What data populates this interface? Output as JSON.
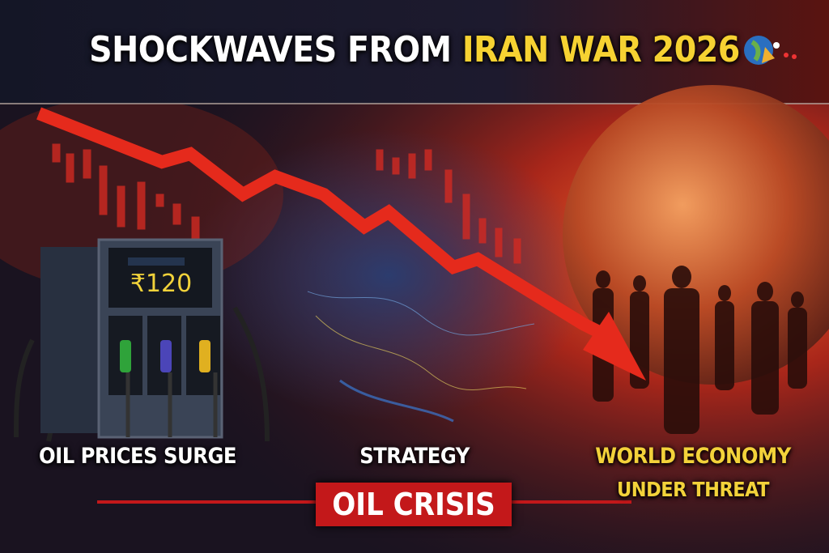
{
  "title": {
    "white": "SHOCKWAVES FROM ",
    "yellow": "IRAN WAR 2026",
    "icon": "globe-sparkle-icon"
  },
  "pump": {
    "price": "₹120",
    "nozzle_colors": [
      "#2fa33a",
      "#4b45b8",
      "#e0b020"
    ]
  },
  "labels": {
    "left": "OIL PRICES SURGE",
    "center": "STRATEGY",
    "right_line1": "WORLD ECONOMY",
    "right_line2": "UNDER THREAT"
  },
  "banner": "OIL CRISIS",
  "colors": {
    "accent_yellow": "#f6d232",
    "accent_red": "#c3181a",
    "arrow": "#e52a1c"
  }
}
